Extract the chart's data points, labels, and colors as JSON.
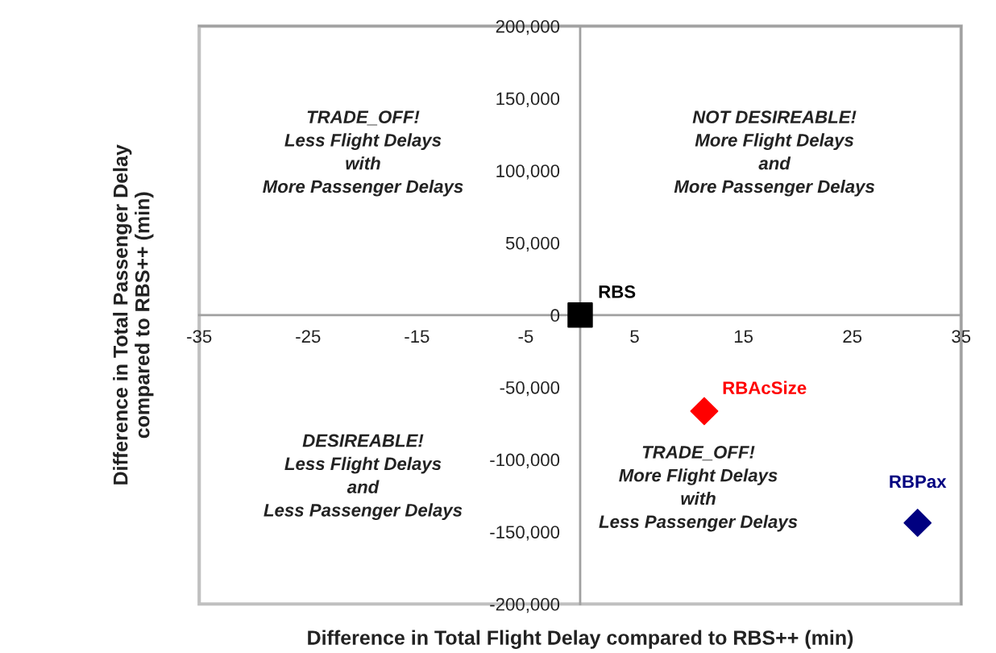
{
  "chart_data": {
    "type": "scatter",
    "xlabel": "Difference in Total Flight Delay compared to RBS++ (min)",
    "ylabel": "Difference in Total Passenger Delay\ncompared to RBS++ (min)",
    "xlim": [
      -35,
      35
    ],
    "xticks": [
      -35,
      -25,
      -15,
      -5,
      5,
      15,
      25,
      35
    ],
    "ylim": [
      -200000,
      200000
    ],
    "yticks": [
      {
        "value": -200000,
        "label": "-200,000"
      },
      {
        "value": -150000,
        "label": "-150,000"
      },
      {
        "value": -100000,
        "label": "-100,000"
      },
      {
        "value": -50000,
        "label": "-50,000"
      },
      0,
      {
        "value": 50000,
        "label": "50,000"
      },
      {
        "value": 100000,
        "label": "100,000"
      },
      {
        "value": 150000,
        "label": "150,000"
      },
      {
        "value": 200000,
        "label": "200,000"
      }
    ],
    "grid": false,
    "legend": false,
    "series": [
      {
        "name": "RBS",
        "color": "#000000",
        "marker": "square",
        "x": [
          0
        ],
        "values": [
          0
        ]
      },
      {
        "name": "RBAcSize",
        "color": "#ff0000",
        "marker": "diamond",
        "x": [
          11.4
        ],
        "values": [
          -66500
        ]
      },
      {
        "name": "RBPax",
        "color": "#000080",
        "marker": "diamond",
        "x": [
          31
        ],
        "values": [
          -143800
        ]
      }
    ],
    "annotations": [
      "TRADE_OFF!\nLess Flight Delays\nwith\nMore Passenger Delays",
      "NOT DESIREABLE!\nMore Flight Delays\nand\nMore Passenger Delays",
      "DESIREABLE!\nLess Flight Delays\nand\nLess Passenger Delays",
      "TRADE_OFF!\nMore Flight Delays\nwith\nLess Passenger Delays"
    ]
  }
}
